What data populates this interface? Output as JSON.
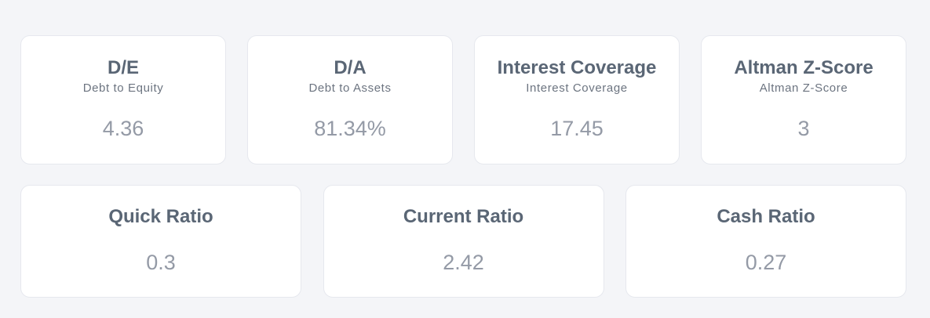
{
  "top_cards": [
    {
      "title": "D/E",
      "subtitle": "Debt to Equity",
      "value": "4.36"
    },
    {
      "title": "D/A",
      "subtitle": "Debt to Assets",
      "value": "81.34%"
    },
    {
      "title": "Interest Coverage",
      "subtitle": "Interest Coverage",
      "value": "17.45"
    },
    {
      "title": "Altman Z-Score",
      "subtitle": "Altman Z-Score",
      "value": "3"
    }
  ],
  "bottom_cards": [
    {
      "title": "Quick Ratio",
      "value": "0.3"
    },
    {
      "title": "Current Ratio",
      "value": "2.42"
    },
    {
      "title": "Cash Ratio",
      "value": "0.27"
    }
  ],
  "colors": {
    "background": "#f4f5f8",
    "card": "#ffffff",
    "title": "#5a6675",
    "subtitle": "#6c7480",
    "value": "#949aa6"
  }
}
